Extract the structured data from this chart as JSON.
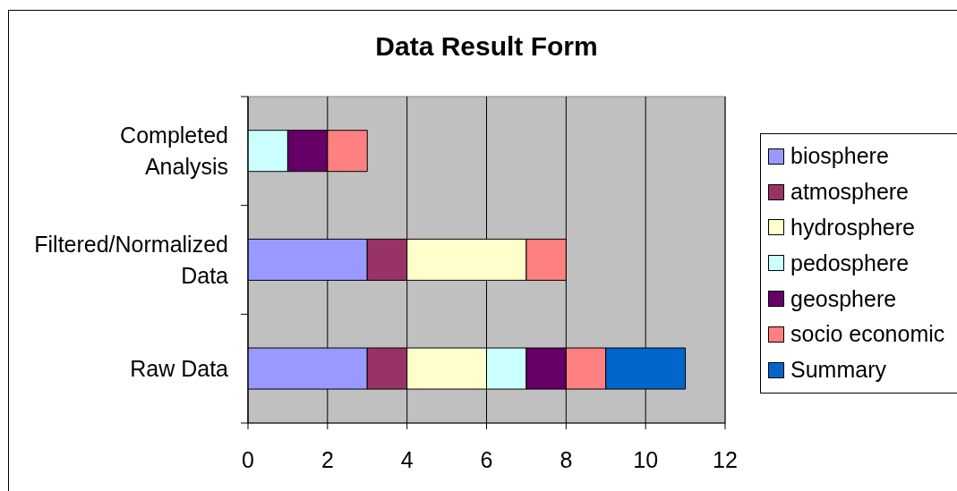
{
  "chart_data": {
    "type": "bar",
    "orientation": "horizontal",
    "stacked": true,
    "title": "Data Result Form",
    "categories": [
      "Completed Analysis",
      "Filtered/Normalized Data",
      "Raw Data"
    ],
    "series": [
      {
        "name": "biosphere",
        "color": "#9999ff",
        "values": [
          0,
          3,
          3
        ]
      },
      {
        "name": "atmosphere",
        "color": "#993366",
        "values": [
          0,
          1,
          1
        ]
      },
      {
        "name": "hydrosphere",
        "color": "#ffffcc",
        "values": [
          0,
          3,
          2
        ]
      },
      {
        "name": "pedosphere",
        "color": "#ccffff",
        "values": [
          1,
          0,
          1
        ]
      },
      {
        "name": "geosphere",
        "color": "#660066",
        "values": [
          1,
          0,
          1
        ]
      },
      {
        "name": "socio economic",
        "color": "#ff8080",
        "values": [
          1,
          1,
          1
        ]
      },
      {
        "name": "Summary",
        "color": "#0066cc",
        "values": [
          0,
          0,
          2
        ]
      }
    ],
    "xlim": [
      0,
      12
    ],
    "xticks": [
      0,
      2,
      4,
      6,
      8,
      10,
      12
    ],
    "grid": "x",
    "legend": "right"
  }
}
